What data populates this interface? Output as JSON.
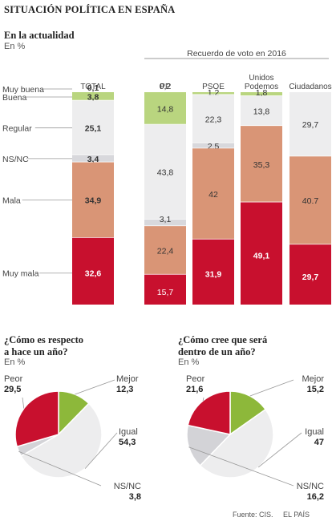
{
  "title": "SITUACIÓN POLÍTICA EN ESPAÑA",
  "chart_data": [
    {
      "type": "bar",
      "subtype": "stacked-100",
      "title": "En la actualidad",
      "unit": "En %",
      "group_label": "Recuerdo de voto en 2016",
      "categories": [
        "TOTAL",
        "PP",
        "PSOE",
        "Unidos Podemos",
        "Ciudadanos"
      ],
      "series": [
        {
          "name": "Muy buena",
          "color": "#b9d57f",
          "values": [
            0.1,
            0.2,
            0.0,
            0.0,
            0.0
          ]
        },
        {
          "name": "Buena",
          "color": "#b9d57f",
          "values": [
            3.8,
            14.8,
            1.2,
            1.8,
            0.0
          ]
        },
        {
          "name": "Regular",
          "color": "#ededee",
          "values": [
            25.1,
            43.8,
            22.3,
            13.8,
            29.7
          ]
        },
        {
          "name": "NS/NC",
          "color": "#d8d8dc",
          "values": [
            3.4,
            3.1,
            2.5,
            0.0,
            0.0
          ]
        },
        {
          "name": "Mala",
          "color": "#d99576",
          "values": [
            34.9,
            22.4,
            42,
            35.3,
            40.7
          ]
        },
        {
          "name": "Muy mala",
          "color": "#c8102e",
          "values": [
            32.6,
            15.7,
            31.9,
            49.1,
            29.7
          ]
        }
      ],
      "value_labels": [
        [
          "0,1",
          "0,2",
          "",
          "",
          ""
        ],
        [
          "3,8",
          "14,8",
          "1,2",
          "1,8",
          ""
        ],
        [
          "25,1",
          "43,8",
          "22,3",
          "13,8",
          "29,7"
        ],
        [
          "3,4",
          "3,1",
          "2,5",
          "",
          ""
        ],
        [
          "34,9",
          "22,4",
          "42",
          "35,3",
          "40.7"
        ],
        [
          "32,6",
          "15,7",
          "31,9",
          "49,1",
          "29,7"
        ]
      ]
    },
    {
      "type": "pie",
      "title": "¿Cómo es respecto a hace un año?",
      "unit": "En %",
      "slices": [
        {
          "name": "Mejor",
          "value": 12.3,
          "label": "12,3",
          "color": "#8db83a"
        },
        {
          "name": "Igual",
          "value": 54.3,
          "label": "54,3",
          "color": "#ededee"
        },
        {
          "name": "NS/NC",
          "value": 3.8,
          "label": "3,8",
          "color": "#d3d3d7"
        },
        {
          "name": "Peor",
          "value": 29.5,
          "label": "29,5",
          "color": "#c8102e"
        }
      ]
    },
    {
      "type": "pie",
      "title": "¿Cómo cree que será dentro de un año?",
      "unit": "En %",
      "slices": [
        {
          "name": "Mejor",
          "value": 15.2,
          "label": "15,2",
          "color": "#8db83a"
        },
        {
          "name": "Igual",
          "value": 47,
          "label": "47",
          "color": "#ededee"
        },
        {
          "name": "NS/NC",
          "value": 16.2,
          "label": "16,2",
          "color": "#d3d3d7"
        },
        {
          "name": "Peor",
          "value": 21.6,
          "label": "21,6",
          "color": "#c8102e"
        }
      ]
    }
  ],
  "pie1": {
    "title_line1": "¿Cómo es respecto",
    "title_line2": "a hace un año?"
  },
  "pie2": {
    "title_line1": "¿Cómo cree que será",
    "title_line2": "dentro de un año?"
  },
  "footer": {
    "source": "Fuente: CIS.",
    "brand": "EL PAÍS"
  }
}
